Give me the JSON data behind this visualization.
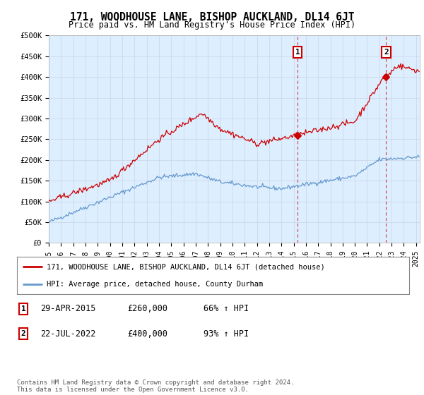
{
  "title": "171, WOODHOUSE LANE, BISHOP AUCKLAND, DL14 6JT",
  "subtitle": "Price paid vs. HM Land Registry's House Price Index (HPI)",
  "plot_bg_color": "#ddeeff",
  "ylim": [
    0,
    500000
  ],
  "yticks": [
    0,
    50000,
    100000,
    150000,
    200000,
    250000,
    300000,
    350000,
    400000,
    450000,
    500000
  ],
  "ytick_labels": [
    "£0",
    "£50K",
    "£100K",
    "£150K",
    "£200K",
    "£250K",
    "£300K",
    "£350K",
    "£400K",
    "£450K",
    "£500K"
  ],
  "xlim_start": 1995.3,
  "xlim_end": 2025.3,
  "red_line_color": "#cc0000",
  "blue_line_color": "#6699cc",
  "marker1_x": 2015.33,
  "marker1_y": 260000,
  "marker1_label": "1",
  "marker2_x": 2022.55,
  "marker2_y": 400000,
  "marker2_label": "2",
  "legend_red_label": "171, WOODHOUSE LANE, BISHOP AUCKLAND, DL14 6JT (detached house)",
  "legend_blue_label": "HPI: Average price, detached house, County Durham",
  "table_rows": [
    {
      "num": "1",
      "date": "29-APR-2015",
      "price": "£260,000",
      "change": "66% ↑ HPI"
    },
    {
      "num": "2",
      "date": "22-JUL-2022",
      "price": "£400,000",
      "change": "93% ↑ HPI"
    }
  ],
  "footer": "Contains HM Land Registry data © Crown copyright and database right 2024.\nThis data is licensed under the Open Government Licence v3.0.",
  "grid_color": "#c8d4e8",
  "vline_color": "#cc0000"
}
